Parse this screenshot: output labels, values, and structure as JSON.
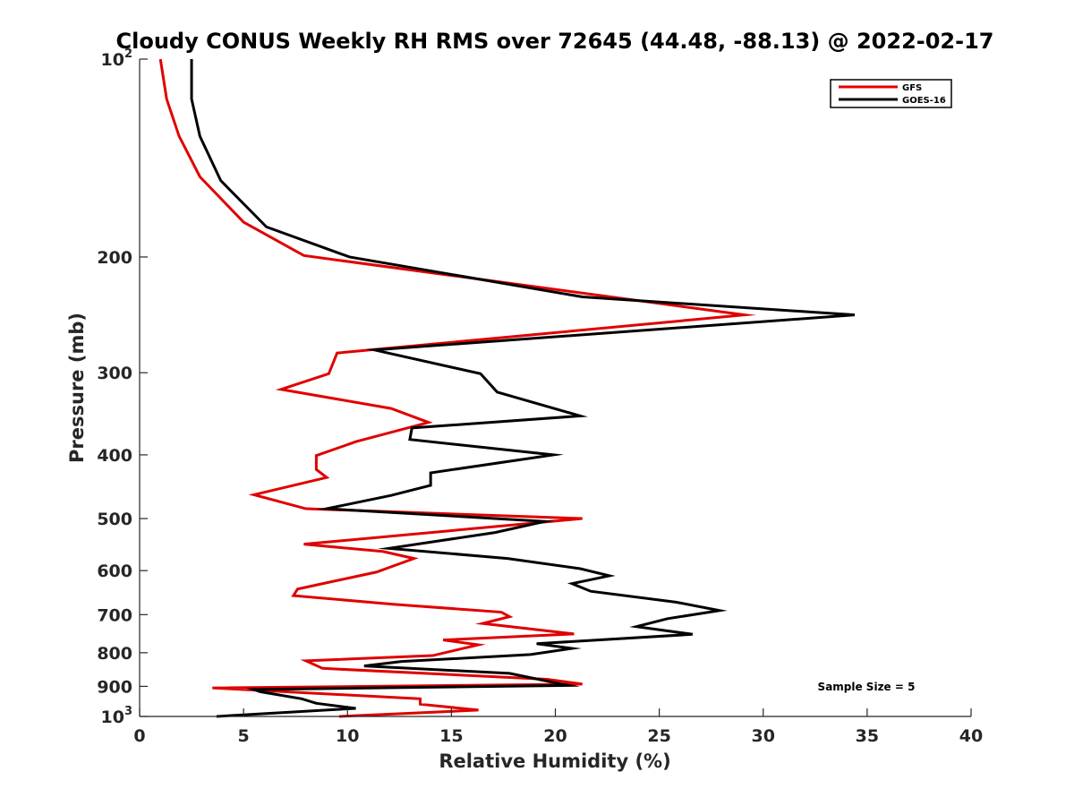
{
  "chart_data": {
    "type": "line",
    "title": "Cloudy CONUS Weekly RH RMS over 72645 (44.48, -88.13) @ 2022-02-17",
    "xlabel": "Relative Humidity (%)",
    "ylabel": "Pressure (mb)",
    "xlim": [
      0,
      40
    ],
    "ylim": [
      100,
      1000
    ],
    "y_scale": "log",
    "y_reversed": true,
    "x_ticks": [
      {
        "value": 0,
        "label": "0"
      },
      {
        "value": 5,
        "label": "5"
      },
      {
        "value": 10,
        "label": "10"
      },
      {
        "value": 15,
        "label": "15"
      },
      {
        "value": 20,
        "label": "20"
      },
      {
        "value": 25,
        "label": "25"
      },
      {
        "value": 30,
        "label": "30"
      },
      {
        "value": 35,
        "label": "35"
      },
      {
        "value": 40,
        "label": "40"
      }
    ],
    "y_ticks": [
      {
        "value": 100,
        "label": "10",
        "sup": "2"
      },
      {
        "value": 200,
        "label": "200"
      },
      {
        "value": 300,
        "label": "300"
      },
      {
        "value": 400,
        "label": "400"
      },
      {
        "value": 500,
        "label": "500"
      },
      {
        "value": 600,
        "label": "600"
      },
      {
        "value": 700,
        "label": "700"
      },
      {
        "value": 800,
        "label": "800"
      },
      {
        "value": 900,
        "label": "900"
      },
      {
        "value": 1000,
        "label": "10",
        "sup": "3"
      }
    ],
    "legend": {
      "position": "top-right"
    },
    "annotation": "Sample Size = 5",
    "series": [
      {
        "name": "GFS",
        "color": "#e00000",
        "points": [
          [
            1.0,
            100
          ],
          [
            1.3,
            115
          ],
          [
            1.9,
            131
          ],
          [
            2.9,
            151
          ],
          [
            5.0,
            177
          ],
          [
            7.9,
            199
          ],
          [
            29.1,
            245
          ],
          [
            9.5,
            280
          ],
          [
            9.1,
            301
          ],
          [
            6.8,
            318
          ],
          [
            12.1,
            340
          ],
          [
            13.9,
            357
          ],
          [
            10.4,
            382
          ],
          [
            8.5,
            401
          ],
          [
            8.5,
            421
          ],
          [
            9.0,
            433
          ],
          [
            5.5,
            460
          ],
          [
            8.0,
            483
          ],
          [
            21.3,
            500
          ],
          [
            7.9,
            547
          ],
          [
            11.7,
            561
          ],
          [
            13.2,
            575
          ],
          [
            11.4,
            603
          ],
          [
            7.6,
            640
          ],
          [
            7.4,
            655
          ],
          [
            12.2,
            675
          ],
          [
            17.4,
            694
          ],
          [
            17.8,
            705
          ],
          [
            16.5,
            722
          ],
          [
            20.9,
            749
          ],
          [
            14.6,
            765
          ],
          [
            16.3,
            778
          ],
          [
            14.1,
            808
          ],
          [
            8.0,
            823
          ],
          [
            8.8,
            845
          ],
          [
            19.6,
            878
          ],
          [
            21.3,
            893
          ],
          [
            3.5,
            905
          ],
          [
            13.5,
            940
          ],
          [
            13.5,
            958
          ],
          [
            16.3,
            978
          ],
          [
            9.6,
            1000
          ]
        ]
      },
      {
        "name": "GOES-16",
        "color": "#000000",
        "points": [
          [
            2.5,
            100
          ],
          [
            2.5,
            115
          ],
          [
            2.9,
            131
          ],
          [
            3.9,
            153
          ],
          [
            6.1,
            180
          ],
          [
            10.1,
            200
          ],
          [
            21.3,
            230
          ],
          [
            34.4,
            245
          ],
          [
            11.3,
            277
          ],
          [
            16.4,
            301
          ],
          [
            17.2,
            321
          ],
          [
            21.2,
            349
          ],
          [
            13.1,
            364
          ],
          [
            13.0,
            379
          ],
          [
            19.9,
            400
          ],
          [
            14.0,
            426
          ],
          [
            14.0,
            445
          ],
          [
            12.1,
            461
          ],
          [
            9.0,
            483
          ],
          [
            19.5,
            505
          ],
          [
            17.1,
            525
          ],
          [
            12.0,
            555
          ],
          [
            17.7,
            575
          ],
          [
            21.2,
            596
          ],
          [
            22.6,
            611
          ],
          [
            20.8,
            628
          ],
          [
            21.7,
            645
          ],
          [
            25.8,
            670
          ],
          [
            27.9,
            690
          ],
          [
            25.4,
            710
          ],
          [
            23.9,
            730
          ],
          [
            26.6,
            750
          ],
          [
            19.1,
            775
          ],
          [
            20.8,
            788
          ],
          [
            18.8,
            805
          ],
          [
            12.6,
            825
          ],
          [
            10.8,
            838
          ],
          [
            17.8,
            860
          ],
          [
            20.6,
            897
          ],
          [
            5.5,
            910
          ],
          [
            5.8,
            917
          ],
          [
            7.8,
            940
          ],
          [
            8.5,
            955
          ],
          [
            10.4,
            972
          ],
          [
            3.7,
            1000
          ]
        ]
      }
    ]
  }
}
